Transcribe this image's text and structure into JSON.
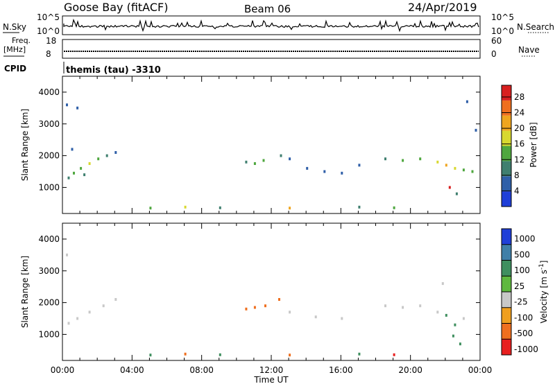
{
  "header": {
    "station": "Goose Bay (fitACF)",
    "beam": "Beam 06",
    "date": "24/Apr/2019"
  },
  "noise_panel": {
    "left_label": "N.Sky",
    "right_label": "N.Search",
    "left_ticks": [
      "10^5",
      "10^0"
    ],
    "right_ticks": [
      "10^5",
      "10^0"
    ]
  },
  "freq_panel": {
    "left_label_1": "Freq.",
    "left_label_2": "[MHz]",
    "left_ticks": [
      "18",
      "8"
    ],
    "right_label": "Nave",
    "right_ticks": [
      "60",
      "0"
    ],
    "cpid_label": "CPID",
    "cpid_text": "themis (tau) -3310"
  },
  "chart_data": [
    {
      "type": "heatmap",
      "name": "power",
      "xlabel": "",
      "ylabel": "Slant Range [km]",
      "ylim": [
        180,
        4500
      ],
      "yticks": [
        "1000",
        "2000",
        "3000",
        "4000"
      ],
      "colorbar_label": "Power [dB]",
      "colorbar_ticks": [
        "4",
        "8",
        "12",
        "16",
        "20",
        "24",
        "28"
      ],
      "colorbar_range": [
        0,
        31
      ],
      "colors": [
        "#1f3fd8",
        "#2f5fa8",
        "#3f7f6f",
        "#4fa73f",
        "#d8d82f",
        "#efa51f",
        "#ef6f1f",
        "#d81f1f"
      ],
      "points": [
        {
          "x": 0.3,
          "y": 1300,
          "v": 8
        },
        {
          "x": 0.6,
          "y": 1450,
          "v": 12
        },
        {
          "x": 1.0,
          "y": 1600,
          "v": 14
        },
        {
          "x": 1.5,
          "y": 1750,
          "v": 16
        },
        {
          "x": 2.0,
          "y": 1900,
          "v": 12
        },
        {
          "x": 2.5,
          "y": 2000,
          "v": 8
        },
        {
          "x": 3.0,
          "y": 2100,
          "v": 6
        },
        {
          "x": 0.2,
          "y": 3600,
          "v": 6
        },
        {
          "x": 0.8,
          "y": 3500,
          "v": 4
        },
        {
          "x": 0.5,
          "y": 2200,
          "v": 5
        },
        {
          "x": 1.2,
          "y": 1400,
          "v": 10
        },
        {
          "x": 10.5,
          "y": 1800,
          "v": 10
        },
        {
          "x": 11.0,
          "y": 1750,
          "v": 14
        },
        {
          "x": 11.5,
          "y": 1850,
          "v": 12
        },
        {
          "x": 12.5,
          "y": 2000,
          "v": 8
        },
        {
          "x": 13.0,
          "y": 1900,
          "v": 6
        },
        {
          "x": 14.0,
          "y": 1600,
          "v": 4
        },
        {
          "x": 15.0,
          "y": 1500,
          "v": 5
        },
        {
          "x": 16.0,
          "y": 1450,
          "v": 4
        },
        {
          "x": 17.0,
          "y": 1700,
          "v": 6
        },
        {
          "x": 18.5,
          "y": 1900,
          "v": 8
        },
        {
          "x": 19.5,
          "y": 1850,
          "v": 12
        },
        {
          "x": 20.5,
          "y": 1900,
          "v": 14
        },
        {
          "x": 21.5,
          "y": 1800,
          "v": 18
        },
        {
          "x": 22.0,
          "y": 1700,
          "v": 20
        },
        {
          "x": 22.5,
          "y": 1600,
          "v": 16
        },
        {
          "x": 23.0,
          "y": 1550,
          "v": 12
        },
        {
          "x": 23.5,
          "y": 1500,
          "v": 14
        },
        {
          "x": 22.2,
          "y": 1000,
          "v": 28
        },
        {
          "x": 22.6,
          "y": 800,
          "v": 10
        },
        {
          "x": 23.2,
          "y": 3700,
          "v": 6
        },
        {
          "x": 23.7,
          "y": 2800,
          "v": 4
        },
        {
          "x": 5.0,
          "y": 350,
          "v": 12
        },
        {
          "x": 7.0,
          "y": 380,
          "v": 16
        },
        {
          "x": 9.0,
          "y": 360,
          "v": 10
        },
        {
          "x": 13.0,
          "y": 350,
          "v": 20
        },
        {
          "x": 17.0,
          "y": 380,
          "v": 8
        },
        {
          "x": 19.0,
          "y": 360,
          "v": 12
        }
      ]
    },
    {
      "type": "heatmap",
      "name": "velocity",
      "xlabel": "Time UT",
      "ylabel": "Slant Range [km]",
      "ylim": [
        180,
        4500
      ],
      "yticks": [
        "1000",
        "2000",
        "3000",
        "4000"
      ],
      "xticks": [
        "00:00",
        "04:00",
        "08:00",
        "12:00",
        "16:00",
        "20:00",
        "00:00"
      ],
      "colorbar_label": "Velocity [m s^-1]",
      "colorbar_ticks": [
        "1000",
        "500",
        "100",
        "25",
        "-25",
        "-100",
        "-500",
        "-1000"
      ],
      "colors": [
        "#1f3fd8",
        "#3f7fa8",
        "#3f8f5f",
        "#5fb83f",
        "#c8c8c8",
        "#ef9f1f",
        "#ef6f1f",
        "#e81f1f"
      ],
      "points": [
        {
          "x": 0.3,
          "y": 1350,
          "v": 0
        },
        {
          "x": 0.8,
          "y": 1500,
          "v": 10
        },
        {
          "x": 1.5,
          "y": 1700,
          "v": 0
        },
        {
          "x": 2.3,
          "y": 1900,
          "v": 0
        },
        {
          "x": 3.0,
          "y": 2100,
          "v": 0
        },
        {
          "x": 0.2,
          "y": 3500,
          "v": 0
        },
        {
          "x": 10.5,
          "y": 1800,
          "v": -300
        },
        {
          "x": 11.0,
          "y": 1850,
          "v": -300
        },
        {
          "x": 11.6,
          "y": 1900,
          "v": -120
        },
        {
          "x": 12.4,
          "y": 2100,
          "v": -300
        },
        {
          "x": 13.0,
          "y": 1700,
          "v": 0
        },
        {
          "x": 14.5,
          "y": 1550,
          "v": 0
        },
        {
          "x": 16.0,
          "y": 1500,
          "v": 0
        },
        {
          "x": 18.5,
          "y": 1900,
          "v": 0
        },
        {
          "x": 19.5,
          "y": 1850,
          "v": 0
        },
        {
          "x": 20.5,
          "y": 1900,
          "v": 0
        },
        {
          "x": 21.5,
          "y": 1700,
          "v": 0
        },
        {
          "x": 22.0,
          "y": 1600,
          "v": 200
        },
        {
          "x": 22.5,
          "y": 1300,
          "v": 200
        },
        {
          "x": 23.0,
          "y": 1500,
          "v": 0
        },
        {
          "x": 22.4,
          "y": 950,
          "v": 300
        },
        {
          "x": 22.8,
          "y": 700,
          "v": 300
        },
        {
          "x": 21.8,
          "y": 2600,
          "v": 0
        },
        {
          "x": 5.0,
          "y": 350,
          "v": 150
        },
        {
          "x": 7.0,
          "y": 380,
          "v": -150
        },
        {
          "x": 9.0,
          "y": 360,
          "v": 150
        },
        {
          "x": 13.0,
          "y": 350,
          "v": -120
        },
        {
          "x": 17.0,
          "y": 380,
          "v": 150
        },
        {
          "x": 19.0,
          "y": 360,
          "v": -600
        }
      ]
    }
  ]
}
